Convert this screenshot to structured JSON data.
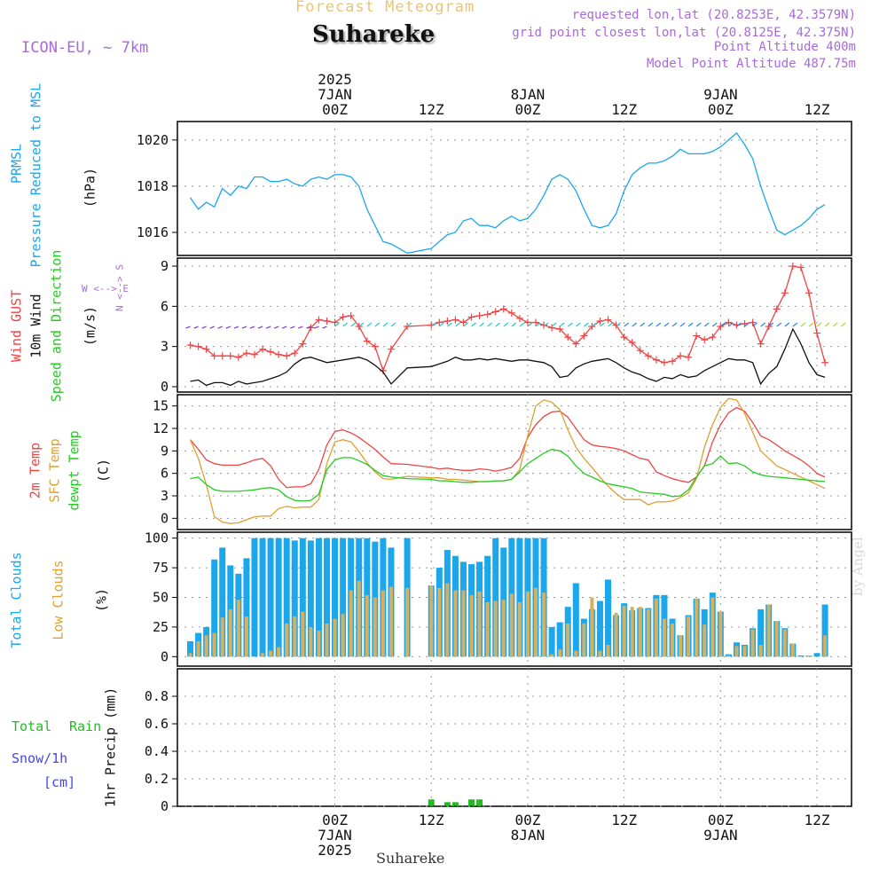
{
  "header": {
    "title": "Forecast Meteogram",
    "station": "Suhareke",
    "model": "ICON-EU, ~ 7km",
    "requested": "requested lon,lat (20.8253E, 42.3579N)",
    "gridpoint": "grid point closest lon,lat (20.8125E, 42.375N)",
    "point_alt": "Point Altitude 400m",
    "model_alt": "Model Point Altitude 487.75m"
  },
  "footer": {
    "station": "Suhareke",
    "credit": "by Angel"
  },
  "time_axis": {
    "top_labels": [
      {
        "hour": 0,
        "lines": [
          "2025",
          "7JAN",
          "00Z"
        ]
      },
      {
        "hour": 12,
        "lines": [
          "12Z"
        ]
      },
      {
        "hour": 24,
        "lines": [
          "8JAN",
          "00Z"
        ]
      },
      {
        "hour": 36,
        "lines": [
          "12Z"
        ]
      },
      {
        "hour": 48,
        "lines": [
          "9JAN",
          "00Z"
        ]
      },
      {
        "hour": 60,
        "lines": [
          "12Z"
        ]
      }
    ],
    "bottom_labels": [
      {
        "hour": 0,
        "lines": [
          "00Z",
          "7JAN",
          "2025"
        ]
      },
      {
        "hour": 12,
        "lines": [
          "12Z"
        ]
      },
      {
        "hour": 24,
        "lines": [
          "00Z",
          "8JAN"
        ]
      },
      {
        "hour": 36,
        "lines": [
          "12Z"
        ]
      },
      {
        "hour": 48,
        "lines": [
          "00Z",
          "9JAN"
        ]
      },
      {
        "hour": 60,
        "lines": [
          "12Z"
        ]
      }
    ]
  },
  "panel_labels": {
    "pressure": {
      "l1": "PRMSL",
      "l2": "Pressure Reduced to MSL",
      "unit": "(hPa)"
    },
    "wind": {
      "l1": "Wind GUST",
      "l2": "10m Wind",
      "l3": "Speed and Direction",
      "unit": "(m/s)",
      "compass_ns": "N <--> S",
      "compass_we": "W <--> E"
    },
    "temp": {
      "l1": "2m Temp",
      "l2": "SFC Temp",
      "l3": "dewpt Temp",
      "unit": "(C)"
    },
    "cloud": {
      "l1": "Total Clouds",
      "l2": "Low Clouds",
      "unit": "(%)"
    },
    "precip": {
      "l1": "Total",
      "l1b": "Rain",
      "l2": "Snow/1h",
      "l3": "[cm]",
      "unit": "1hr Precip (mm)"
    }
  },
  "colors": {
    "pressure": "#1aa7ec",
    "gust": "#ee4444",
    "wind": "#111111",
    "t2m": "#ee4444",
    "sfc": "#e0a030",
    "dewpt": "#22cc22",
    "total_cloud": "#1aa7ec",
    "low_cloud": "#d4b060",
    "rain": "#22bb22",
    "snow": "#4444ee",
    "grid": "#999999"
  },
  "chart_data": [
    {
      "type": "line",
      "panel": "pressure",
      "ylabel": "(hPa)",
      "ylim": [
        1015.0,
        1020.8
      ],
      "yticks": [
        1016,
        1018,
        1020
      ],
      "x_hours": [
        -18,
        -17,
        -16,
        -15,
        -14,
        -13,
        -12,
        -11,
        -10,
        -9,
        -8,
        -7,
        -6,
        -5,
        -4,
        -3,
        -2,
        -1,
        0,
        1,
        2,
        3,
        4,
        5,
        6,
        7,
        9,
        12,
        13,
        14,
        15,
        16,
        17,
        18,
        19,
        20,
        21,
        22,
        23,
        24,
        25,
        26,
        27,
        28,
        29,
        30,
        31,
        32,
        33,
        34,
        35,
        36,
        37,
        38,
        39,
        40,
        41,
        42,
        43,
        44,
        45,
        46,
        47,
        48,
        49,
        50,
        51,
        52,
        53,
        54,
        55,
        56,
        57,
        58,
        59,
        60,
        61,
        62,
        63
      ],
      "series": [
        {
          "values": [
            1017.5,
            1017.0,
            1017.3,
            1017.1,
            1017.9,
            1017.6,
            1018.0,
            1017.9,
            1018.4,
            1018.4,
            1018.2,
            1018.2,
            1018.3,
            1018.1,
            1018.0,
            1018.3,
            1018.4,
            1018.3,
            1018.5,
            1018.5,
            1018.4,
            1018.0,
            1017.0,
            1016.3,
            1015.6,
            1015.5,
            1015.1,
            1015.3,
            1015.6,
            1015.9,
            1016.0,
            1016.5,
            1016.6,
            1016.3,
            1016.3,
            1016.2,
            1016.5,
            1016.7,
            1016.5,
            1016.6,
            1017.0,
            1017.6,
            1018.3,
            1018.5,
            1018.3,
            1017.8,
            1017.0,
            1016.3,
            1016.2,
            1016.3,
            1016.8,
            1017.8,
            1018.5,
            1018.8,
            1019.0,
            1019.0,
            1019.1,
            1019.3,
            1019.6,
            1019.4,
            1019.4,
            1019.4,
            1019.5,
            1019.7,
            1020.0,
            1020.3,
            1019.8,
            1019.2,
            1018.0,
            1017.0,
            1016.1,
            1015.9,
            1016.1,
            1016.3,
            1016.6,
            1017.0,
            1017.2
          ]
        }
      ]
    },
    {
      "type": "line",
      "panel": "wind",
      "ylabel": "(m/s)",
      "ylim": [
        -0.4,
        9.6
      ],
      "yticks": [
        0,
        3,
        6,
        9
      ],
      "x_hours": [
        -18,
        -17,
        -16,
        -15,
        -14,
        -13,
        -12,
        -11,
        -10,
        -9,
        -8,
        -7,
        -6,
        -5,
        -4,
        -3,
        -2,
        -1,
        0,
        1,
        2,
        3,
        4,
        5,
        6,
        7,
        9,
        12,
        13,
        14,
        15,
        16,
        17,
        18,
        19,
        20,
        21,
        22,
        23,
        24,
        25,
        26,
        27,
        28,
        29,
        30,
        31,
        32,
        33,
        34,
        35,
        36,
        37,
        38,
        39,
        40,
        41,
        42,
        43,
        44,
        45,
        46,
        47,
        48,
        49,
        50,
        51,
        52,
        53,
        54,
        55,
        56,
        57,
        58,
        59,
        60,
        61,
        62,
        63
      ],
      "series": [
        {
          "name": "Wind GUST",
          "values": [
            3.1,
            3.0,
            2.8,
            2.3,
            2.3,
            2.3,
            2.2,
            2.5,
            2.4,
            2.8,
            2.6,
            2.4,
            2.3,
            2.5,
            3.2,
            4.4,
            5.0,
            4.9,
            4.8,
            5.2,
            5.3,
            4.5,
            3.4,
            3.0,
            1.2,
            2.8,
            4.5,
            4.6,
            4.8,
            4.9,
            5.0,
            4.8,
            5.2,
            5.3,
            5.4,
            5.6,
            5.8,
            5.5,
            5.1,
            4.8,
            4.8,
            4.6,
            4.4,
            4.3,
            3.7,
            3.2,
            3.8,
            4.5,
            4.9,
            5.0,
            4.6,
            3.7,
            3.3,
            2.7,
            2.3,
            2.0,
            1.8,
            1.9,
            2.3,
            2.2,
            3.8,
            3.5,
            3.7,
            4.5,
            4.8,
            4.6,
            4.7,
            4.8,
            3.2,
            4.5,
            5.8,
            7.0,
            9.0,
            8.9,
            7.0,
            4.0,
            1.8
          ]
        },
        {
          "name": "10m Wind",
          "values": [
            0.4,
            0.5,
            0.1,
            0.3,
            0.3,
            0.1,
            0.4,
            0.2,
            0.3,
            0.4,
            0.6,
            0.8,
            1.1,
            1.7,
            2.1,
            2.2,
            2.0,
            1.8,
            1.9,
            2.0,
            2.1,
            2.2,
            2.0,
            1.6,
            1.1,
            0.2,
            1.4,
            1.5,
            1.7,
            1.9,
            2.2,
            2.0,
            2.0,
            2.1,
            2.0,
            2.1,
            2.0,
            1.9,
            2.0,
            2.0,
            1.9,
            1.8,
            1.5,
            0.7,
            0.8,
            1.4,
            1.7,
            1.9,
            2.0,
            2.1,
            1.8,
            1.4,
            1.1,
            0.9,
            0.6,
            0.4,
            0.7,
            0.6,
            0.9,
            0.7,
            0.8,
            1.2,
            1.5,
            1.8,
            2.1,
            2.0,
            2.0,
            1.8,
            0.2,
            1.0,
            1.5,
            2.8,
            4.3,
            3.2,
            1.8,
            0.9,
            0.7
          ]
        }
      ]
    },
    {
      "type": "line",
      "panel": "temperature",
      "ylabel": "(C)",
      "ylim": [
        -1.5,
        16.5
      ],
      "yticks": [
        0,
        3,
        6,
        9,
        12,
        15
      ],
      "x_hours": [
        -18,
        -17,
        -16,
        -15,
        -14,
        -13,
        -12,
        -11,
        -10,
        -9,
        -8,
        -7,
        -6,
        -5,
        -4,
        -3,
        -2,
        -1,
        0,
        1,
        2,
        3,
        4,
        5,
        6,
        7,
        9,
        12,
        13,
        14,
        15,
        16,
        17,
        18,
        19,
        20,
        21,
        22,
        23,
        24,
        25,
        26,
        27,
        28,
        29,
        30,
        31,
        32,
        33,
        34,
        35,
        36,
        37,
        38,
        39,
        40,
        41,
        42,
        43,
        44,
        45,
        46,
        47,
        48,
        49,
        50,
        51,
        52,
        53,
        54,
        55,
        56,
        57,
        58,
        59,
        60,
        61,
        62,
        63
      ],
      "series": [
        {
          "name": "2m Temp",
          "values": [
            10.5,
            9.2,
            7.8,
            7.3,
            7.1,
            7.1,
            7.1,
            7.4,
            7.8,
            8.0,
            7.0,
            5.2,
            4.1,
            4.2,
            4.2,
            4.6,
            6.5,
            9.8,
            11.6,
            11.8,
            11.4,
            10.8,
            10.0,
            9.2,
            8.2,
            7.3,
            7.2,
            6.8,
            6.6,
            6.7,
            6.5,
            6.4,
            6.4,
            6.6,
            6.5,
            6.3,
            6.5,
            6.8,
            8.0,
            10.8,
            12.5,
            13.6,
            14.2,
            14.3,
            13.5,
            12.0,
            10.5,
            9.8,
            9.6,
            9.5,
            9.3,
            9.0,
            8.5,
            8.0,
            7.8,
            6.2,
            5.7,
            5.3,
            5.0,
            4.8,
            5.5,
            7.0,
            10.2,
            12.5,
            14.1,
            14.8,
            14.3,
            12.8,
            11.0,
            10.5,
            9.8,
            9.0,
            8.4,
            7.8,
            7.0,
            6.0,
            5.5
          ]
        },
        {
          "name": "SFC Temp",
          "values": [
            10.5,
            8.0,
            4.5,
            0.2,
            -0.5,
            -0.7,
            -0.6,
            -0.2,
            0.2,
            0.3,
            0.3,
            1.3,
            1.6,
            1.4,
            1.5,
            1.5,
            2.5,
            7.3,
            10.2,
            10.5,
            10.2,
            8.9,
            7.4,
            6.2,
            5.3,
            5.2,
            5.6,
            5.4,
            5.4,
            5.2,
            5.2,
            5.1,
            5.0,
            4.9,
            4.9,
            5.0,
            5.0,
            5.2,
            6.5,
            11.0,
            15.0,
            15.8,
            15.5,
            14.5,
            11.8,
            9.5,
            8.0,
            6.8,
            5.5,
            4.3,
            3.3,
            2.5,
            2.5,
            2.5,
            1.8,
            2.2,
            2.2,
            2.3,
            2.8,
            3.4,
            5.3,
            9.5,
            12.5,
            14.8,
            16.0,
            15.8,
            14.0,
            11.5,
            9.0,
            8.0,
            7.0,
            6.5,
            6.0,
            5.5,
            5.0,
            4.5,
            4.0
          ]
        },
        {
          "name": "dewpt Temp",
          "values": [
            5.3,
            5.5,
            4.5,
            3.8,
            3.6,
            3.6,
            3.6,
            3.7,
            3.8,
            4.0,
            4.1,
            3.8,
            2.9,
            2.4,
            2.3,
            2.4,
            3.2,
            6.5,
            7.8,
            8.1,
            8.1,
            7.7,
            7.2,
            6.4,
            5.7,
            5.5,
            5.3,
            5.2,
            5.0,
            5.0,
            4.9,
            4.8,
            4.8,
            4.9,
            4.9,
            5.0,
            5.0,
            5.2,
            6.2,
            7.3,
            8.0,
            8.7,
            9.2,
            9.0,
            8.3,
            7.0,
            6.0,
            5.5,
            5.0,
            4.6,
            4.4,
            4.2,
            4.0,
            3.5,
            3.4,
            3.3,
            3.2,
            2.9,
            3.0,
            3.8,
            5.5,
            7.0,
            7.3,
            8.3,
            7.3,
            7.4,
            7.0,
            6.2,
            5.8,
            5.6,
            5.5,
            5.4,
            5.3,
            5.2,
            5.1,
            5.0,
            4.9
          ]
        }
      ]
    },
    {
      "type": "bar",
      "panel": "clouds",
      "ylabel": "(%)",
      "ylim": [
        -8,
        105
      ],
      "yticks": [
        0,
        25,
        50,
        75,
        100
      ],
      "x_hours": [
        -18,
        -17,
        -16,
        -15,
        -14,
        -13,
        -12,
        -11,
        -10,
        -9,
        -8,
        -7,
        -6,
        -5,
        -4,
        -3,
        -2,
        -1,
        0,
        1,
        2,
        3,
        4,
        5,
        6,
        7,
        9,
        12,
        13,
        14,
        15,
        16,
        17,
        18,
        19,
        20,
        21,
        22,
        23,
        24,
        25,
        26,
        27,
        28,
        29,
        30,
        31,
        32,
        33,
        34,
        35,
        36,
        37,
        38,
        39,
        40,
        41,
        42,
        43,
        44,
        45,
        46,
        47,
        48,
        49,
        50,
        51,
        52,
        53,
        54,
        55,
        56,
        57,
        58,
        59,
        60,
        61,
        62,
        63
      ],
      "series": [
        {
          "name": "Total Clouds",
          "values": [
            13,
            20,
            25,
            82,
            92,
            77,
            70,
            83,
            100,
            100,
            100,
            100,
            100,
            98,
            100,
            98,
            100,
            100,
            100,
            100,
            100,
            100,
            100,
            97,
            100,
            92,
            100,
            60,
            75,
            90,
            85,
            80,
            78,
            80,
            85,
            100,
            92,
            100,
            100,
            100,
            100,
            100,
            25,
            29,
            42,
            62,
            32,
            40,
            47,
            65,
            35,
            45,
            39,
            41,
            41,
            52,
            52,
            32,
            18,
            35,
            49,
            40,
            54,
            38,
            2,
            12,
            10,
            24,
            40,
            44,
            30,
            24,
            11,
            1,
            1,
            3,
            44
          ]
        },
        {
          "name": "Low Clouds",
          "values": [
            3,
            13,
            18,
            20,
            33,
            40,
            48,
            34,
            0,
            3,
            5,
            8,
            28,
            34,
            38,
            25,
            22,
            28,
            32,
            36,
            56,
            64,
            52,
            50,
            56,
            59,
            58,
            60,
            58,
            62,
            56,
            56,
            52,
            55,
            46,
            47,
            48,
            53,
            46,
            55,
            58,
            54,
            2,
            6,
            28,
            5,
            28,
            50,
            5,
            10,
            37,
            43,
            42,
            42,
            40,
            49,
            32,
            28,
            18,
            34,
            49,
            27,
            50,
            38,
            1,
            9,
            9,
            23,
            10,
            44,
            30,
            23,
            11,
            0,
            1,
            0,
            18
          ]
        }
      ]
    },
    {
      "type": "bar",
      "panel": "precipitation",
      "ylabel": "1hr Precip (mm)",
      "ylim": [
        0,
        1.0
      ],
      "yticks": [
        0,
        0.2,
        0.4,
        0.6,
        0.8
      ],
      "x_hours": [
        12,
        14,
        15,
        17,
        18
      ],
      "series": [
        {
          "name": "Total Rain",
          "values": [
            0.05,
            0.03,
            0.03,
            0.05,
            0.05
          ]
        }
      ]
    }
  ]
}
